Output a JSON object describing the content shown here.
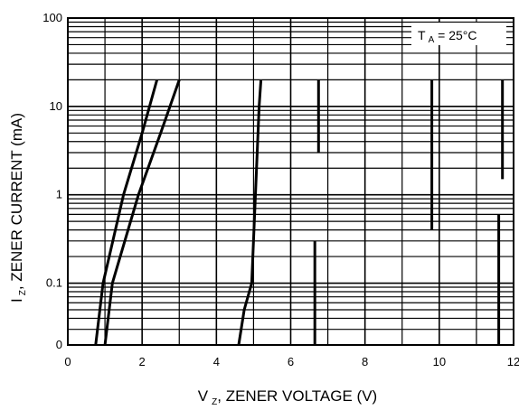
{
  "chart_data": {
    "type": "line",
    "annotation": {
      "main": "T",
      "sub": "A",
      "rest": " = 25°C"
    },
    "xlabel": {
      "main": "V",
      "sub": "Z",
      "rest": ", ZENER VOLTAGE (V)"
    },
    "ylabel": {
      "main": "I",
      "sub": "Z",
      "rest": ", ZENER CURRENT (mA)"
    },
    "xlim": [
      0,
      12
    ],
    "ylim_log": [
      -1.7,
      2
    ],
    "x_ticks": [
      "0",
      "2",
      "4",
      "6",
      "8",
      "10",
      "12"
    ],
    "y_ticks": [
      {
        "value": 100,
        "label": "100"
      },
      {
        "value": 10,
        "label": "10"
      },
      {
        "value": 1,
        "label": "1"
      },
      {
        "value": 0.1,
        "label": "0.1"
      },
      {
        "value": 0.02,
        "label": "0"
      }
    ],
    "grid": true,
    "series": [
      {
        "points": [
          [
            0.75,
            0.02
          ],
          [
            0.95,
            0.1
          ],
          [
            1.5,
            1
          ],
          [
            2.0,
            5
          ],
          [
            2.4,
            20
          ]
        ]
      },
      {
        "points": [
          [
            1.0,
            0.02
          ],
          [
            1.2,
            0.1
          ],
          [
            1.9,
            1
          ],
          [
            2.5,
            5
          ],
          [
            3.0,
            20
          ]
        ]
      },
      {
        "points": [
          [
            4.6,
            0.02
          ],
          [
            4.75,
            0.05
          ],
          [
            4.95,
            0.1
          ],
          [
            5.05,
            1
          ],
          [
            5.15,
            10
          ],
          [
            5.2,
            20
          ]
        ]
      },
      {
        "points": [
          [
            6.65,
            0.02
          ],
          [
            6.65,
            0.3
          ]
        ]
      },
      {
        "points": [
          [
            6.75,
            3
          ],
          [
            6.75,
            20
          ]
        ]
      },
      {
        "points": [
          [
            9.8,
            0.4
          ],
          [
            9.8,
            20
          ]
        ]
      },
      {
        "points": [
          [
            11.6,
            0.02
          ],
          [
            11.6,
            0.6
          ]
        ]
      },
      {
        "points": [
          [
            11.7,
            1.5
          ],
          [
            11.7,
            20
          ]
        ]
      }
    ]
  }
}
